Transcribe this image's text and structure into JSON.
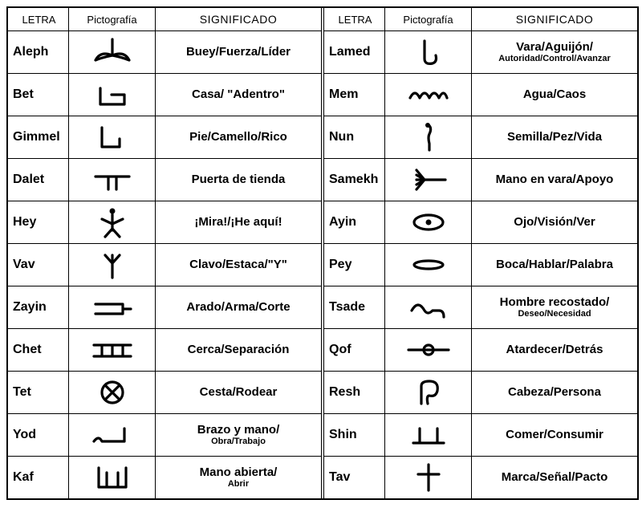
{
  "headers": {
    "letra": "LETRA",
    "picto": "Pictografía",
    "sig": "SIGNIFICADO"
  },
  "left": [
    {
      "name": "Aleph",
      "glyph": "aleph",
      "meaning": "Buey/Fuerza/Líder"
    },
    {
      "name": "Bet",
      "glyph": "bet",
      "meaning": "Casa/ \"Adentro\""
    },
    {
      "name": "Gimmel",
      "glyph": "gimmel",
      "meaning": "Pie/Camello/Rico"
    },
    {
      "name": "Dalet",
      "glyph": "dalet",
      "meaning": "Puerta de tienda"
    },
    {
      "name": "Hey",
      "glyph": "hey",
      "meaning": "¡Mira!/¡He aquí!"
    },
    {
      "name": "Vav",
      "glyph": "vav",
      "meaning": "Clavo/Estaca/\"Y\""
    },
    {
      "name": "Zayin",
      "glyph": "zayin",
      "meaning": "Arado/Arma/Corte"
    },
    {
      "name": "Chet",
      "glyph": "chet",
      "meaning": "Cerca/Separación"
    },
    {
      "name": "Tet",
      "glyph": "tet",
      "meaning": "Cesta/Rodear"
    },
    {
      "name": "Yod",
      "glyph": "yod",
      "meaning": "Brazo y mano/",
      "sub": "Obra/Trabajo"
    },
    {
      "name": "Kaf",
      "glyph": "kaf",
      "meaning": "Mano abierta/",
      "sub": "Abrir"
    }
  ],
  "right": [
    {
      "name": "Lamed",
      "glyph": "lamed",
      "meaning": "Vara/Aguijón/",
      "sub": "Autoridad/Control/Avanzar"
    },
    {
      "name": "Mem",
      "glyph": "mem",
      "meaning": "Agua/Caos"
    },
    {
      "name": "Nun",
      "glyph": "nun",
      "meaning": "Semilla/Pez/Vida"
    },
    {
      "name": "Samekh",
      "glyph": "samekh",
      "meaning": "Mano en vara/Apoyo"
    },
    {
      "name": "Ayin",
      "glyph": "ayin",
      "meaning": "Ojo/Visión/Ver"
    },
    {
      "name": "Pey",
      "glyph": "pey",
      "meaning": "Boca/Hablar/Palabra"
    },
    {
      "name": "Tsade",
      "glyph": "tsade",
      "meaning": "Hombre recostado/",
      "sub": "Deseo/Necesidad"
    },
    {
      "name": "Qof",
      "glyph": "qof",
      "meaning": "Atardecer/Detrás"
    },
    {
      "name": "Resh",
      "glyph": "resh",
      "meaning": "Cabeza/Persona"
    },
    {
      "name": "Shin",
      "glyph": "shin",
      "meaning": "Comer/Consumir"
    },
    {
      "name": "Tav",
      "glyph": "tav",
      "meaning": "Marca/Señal/Pacto"
    }
  ],
  "style": {
    "stroke": "#000000",
    "stroke_width": 3.2,
    "background": "#ffffff",
    "font_bold": "bold"
  }
}
